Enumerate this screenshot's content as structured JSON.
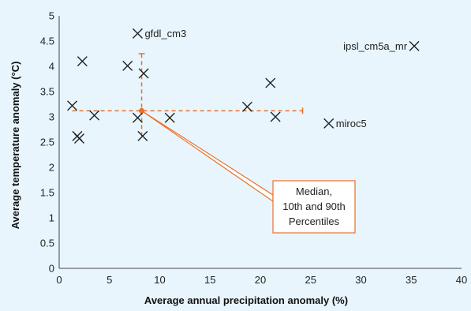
{
  "chart_data": {
    "type": "scatter",
    "title": "",
    "xlabel": "Average annual precipitation anomaly (%)",
    "ylabel": "Average temperature anomaly (°C)",
    "xlim": [
      0,
      40
    ],
    "ylim": [
      0,
      5
    ],
    "xticks": [
      "0",
      "5",
      "10",
      "15",
      "20",
      "25",
      "30",
      "35",
      "40"
    ],
    "yticks": [
      "0",
      "0.5",
      "1",
      "1.5",
      "2",
      "2.5",
      "3",
      "3.5",
      "4",
      "4.5",
      "5"
    ],
    "grid": false,
    "background": "#e8f5fc",
    "marker_color": "#222222",
    "accent_color": "#e8722a",
    "points": [
      {
        "x": 7.8,
        "y": 4.65,
        "label": "gfdl_cm3"
      },
      {
        "x": 35.3,
        "y": 4.4,
        "label": "ipsl_cm5a_mr"
      },
      {
        "x": 26.8,
        "y": 2.87,
        "label": "miroc5"
      },
      {
        "x": 2.3,
        "y": 4.1
      },
      {
        "x": 6.8,
        "y": 4.01
      },
      {
        "x": 8.4,
        "y": 3.86
      },
      {
        "x": 21.0,
        "y": 3.67
      },
      {
        "x": 1.3,
        "y": 3.22
      },
      {
        "x": 18.7,
        "y": 3.2
      },
      {
        "x": 3.5,
        "y": 3.03
      },
      {
        "x": 7.8,
        "y": 2.98
      },
      {
        "x": 11.0,
        "y": 2.98
      },
      {
        "x": 21.5,
        "y": 3.0
      },
      {
        "x": 1.8,
        "y": 2.62
      },
      {
        "x": 2.0,
        "y": 2.57
      },
      {
        "x": 8.3,
        "y": 2.62
      }
    ],
    "median": {
      "x": 8.2,
      "y": 3.12
    },
    "percentiles": {
      "x10": 1.3,
      "x90": 24.2,
      "y10": 2.62,
      "y90": 4.25
    },
    "callout": {
      "lines": [
        "Median,",
        "10th and 90th",
        "Percentiles"
      ]
    }
  }
}
